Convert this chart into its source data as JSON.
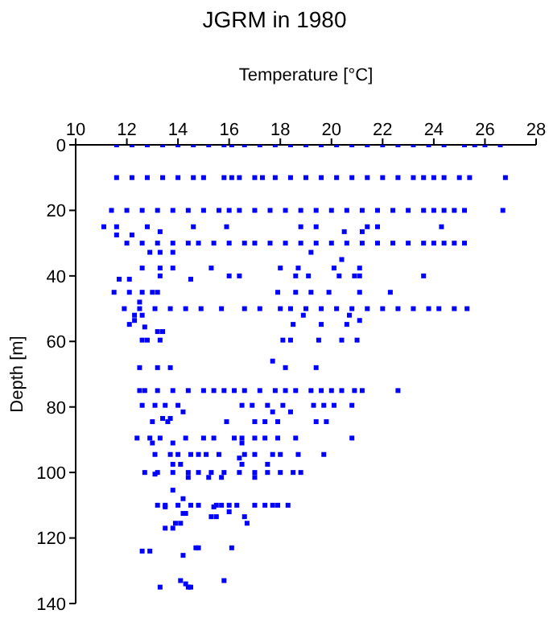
{
  "chart_data": {
    "type": "scatter",
    "title": "JGRM in 1980",
    "xlabel": "Temperature [°C]",
    "ylabel": "Depth [m]",
    "xlim": [
      10,
      28
    ],
    "xticks": [
      10,
      12,
      14,
      16,
      18,
      20,
      22,
      24,
      26,
      28
    ],
    "ylim": [
      140,
      0
    ],
    "yticks": [
      0,
      20,
      40,
      60,
      80,
      100,
      120,
      140
    ],
    "grid": false,
    "legend": false,
    "marker": "square",
    "series": [
      {
        "color": "#0000ff",
        "x": [
          11.6,
          12.2,
          12.8,
          13.4,
          14.0,
          14.6,
          15.2,
          15.8,
          16.1,
          16.6,
          17.2,
          17.8,
          18.4,
          19.0,
          19.6,
          20.2,
          20.8,
          21.4,
          22.0,
          22.6,
          23.2,
          23.8,
          24.4,
          25.2,
          25.6,
          26.0,
          26.6,
          11.6,
          12.2,
          12.8,
          13.4,
          14.0,
          14.6,
          15.0,
          15.8,
          16.1,
          16.4,
          17.0,
          17.3,
          17.8,
          18.4,
          19.0,
          19.6,
          20.2,
          20.8,
          21.4,
          22.0,
          22.6,
          23.2,
          23.6,
          24.0,
          24.4,
          25.0,
          25.4,
          26.8,
          11.4,
          12.0,
          12.6,
          13.2,
          13.8,
          14.4,
          15.0,
          15.6,
          16.0,
          16.4,
          17.0,
          17.6,
          18.2,
          18.8,
          19.4,
          20.0,
          20.6,
          21.2,
          21.8,
          22.4,
          23.0,
          23.6,
          24.0,
          24.4,
          24.8,
          25.2,
          26.7,
          11.1,
          11.6,
          12.8,
          14.6,
          15.9,
          18.8,
          19.4,
          21.4,
          21.8,
          24.3,
          11.6,
          12.2,
          13.3,
          20.5,
          21.2,
          12.0,
          12.6,
          13.2,
          13.8,
          14.4,
          14.8,
          15.4,
          16.0,
          16.6,
          17.0,
          17.6,
          18.2,
          18.8,
          19.4,
          20.0,
          20.6,
          21.2,
          21.8,
          22.4,
          23.0,
          23.6,
          24.0,
          24.4,
          24.8,
          25.2,
          12.9,
          13.3,
          13.8,
          19.2,
          20.4,
          12.6,
          13.3,
          13.8,
          15.3,
          18.0,
          18.7,
          20.1,
          21.1,
          13.3,
          16.0,
          16.4,
          18.6,
          19.1,
          20.3,
          20.9,
          21.1,
          23.6,
          11.7,
          12.1,
          14.5,
          11.5,
          12.1,
          12.6,
          13.0,
          13.2,
          17.9,
          18.6,
          19.2,
          19.9,
          21.1,
          22.3,
          12.5,
          11.9,
          12.5,
          13.1,
          13.7,
          14.3,
          14.9,
          15.7,
          16.6,
          17.2,
          18.0,
          18.4,
          19.0,
          19.6,
          20.2,
          20.8,
          21.4,
          22.0,
          22.6,
          23.2,
          23.8,
          24.2,
          24.8,
          25.3,
          12.3,
          12.6,
          18.9,
          20.7,
          12.3,
          21.1,
          12.1,
          18.5,
          19.6,
          20.6,
          12.7,
          13.2,
          13.4,
          12.6,
          12.8,
          13.3,
          18.1,
          18.4,
          19.5,
          20.4,
          21.0,
          17.7,
          12.5,
          13.2,
          13.7,
          18.2,
          19.4,
          12.5,
          12.7,
          13.2,
          13.8,
          14.4,
          15.0,
          15.4,
          15.8,
          16.2,
          16.6,
          17.2,
          17.8,
          18.2,
          18.6,
          19.2,
          19.6,
          20.0,
          20.4,
          20.9,
          21.2,
          22.6,
          12.6,
          13.1,
          13.5,
          14.0,
          16.5,
          16.9,
          17.5,
          18.1,
          19.3,
          19.7,
          20.1,
          20.8,
          14.2,
          17.7,
          18.4,
          13.4,
          13.7,
          13.0,
          13.6,
          15.9,
          17.0,
          17.4,
          17.9,
          19.4,
          19.8,
          12.4,
          12.9,
          13.3,
          14.3,
          15.0,
          15.4,
          16.2,
          16.5,
          17.0,
          17.4,
          17.9,
          18.6,
          20.8,
          13.0,
          13.8,
          16.5,
          13.1,
          13.7,
          14.0,
          14.5,
          14.8,
          15.1,
          15.6,
          16.6,
          17.0,
          17.7,
          18.0,
          18.7,
          19.7,
          16.4,
          13.8,
          14.1,
          16.5,
          17.5,
          12.7,
          13.2,
          13.8,
          14.4,
          14.8,
          15.3,
          15.8,
          16.4,
          17.0,
          17.5,
          18.0,
          18.5,
          18.8,
          13.1,
          14.4,
          15.2,
          15.7,
          17.0,
          13.8,
          14.2,
          13.2,
          13.5,
          14.0,
          14.5,
          14.8,
          15.5,
          15.7,
          16.0,
          16.3,
          17.0,
          17.4,
          17.7,
          17.9,
          18.3,
          13.5,
          15.4,
          16.0,
          14.2,
          14.3,
          15.3,
          15.5,
          16.6,
          13.9,
          14.1,
          16.7,
          13.5,
          13.8,
          14.7,
          14.8,
          16.1,
          12.6,
          12.9,
          14.2,
          14.1,
          15.8,
          14.3,
          13.3,
          14.4,
          14.5
        ],
        "values": [
          0,
          0,
          0,
          0,
          0,
          0,
          0,
          0,
          0,
          0,
          0,
          0,
          0,
          0,
          0,
          0,
          0,
          0,
          0,
          0,
          0,
          0,
          0,
          0,
          0,
          0,
          0,
          10,
          10,
          10,
          10,
          10,
          10,
          10,
          10,
          10,
          10,
          10,
          10,
          10,
          10,
          10,
          10,
          10,
          10,
          10,
          10,
          10,
          10,
          10,
          10,
          10,
          10,
          10,
          10,
          20,
          20,
          20,
          20,
          20,
          20,
          20,
          20,
          20,
          20,
          20,
          20,
          20,
          20,
          20,
          20,
          20,
          20,
          20,
          20,
          20,
          20,
          20,
          20,
          20,
          20,
          20,
          25,
          25,
          25,
          25,
          25,
          25,
          25,
          25,
          25,
          25,
          27.5,
          27.5,
          26.5,
          26.5,
          26.5,
          30,
          30,
          30,
          30,
          30,
          30,
          30,
          30,
          30,
          30,
          30,
          30,
          30,
          30,
          30,
          30,
          30,
          30,
          30,
          30,
          30,
          30,
          30,
          30,
          30,
          32.8,
          32.8,
          32.8,
          32.8,
          35,
          37.6,
          37.6,
          37.6,
          37.6,
          37.6,
          37.6,
          37.6,
          37.6,
          40,
          40,
          40,
          40,
          40,
          40,
          40,
          40,
          40,
          41,
          41,
          41,
          45,
          45,
          45,
          45,
          45,
          45,
          45,
          45,
          45,
          45,
          45,
          48,
          50,
          50,
          50,
          50,
          50,
          50,
          50,
          50,
          50,
          50,
          50,
          50,
          50,
          50,
          50,
          50,
          50,
          50,
          50,
          50,
          50,
          50,
          50,
          52,
          52,
          52,
          52,
          53.6,
          53.6,
          54.8,
          54.8,
          54.8,
          54.8,
          55.6,
          57,
          57,
          59.6,
          59.6,
          59.6,
          59.6,
          59.6,
          59.6,
          59.6,
          59.6,
          66,
          68,
          68,
          68,
          68,
          68,
          75,
          75,
          75,
          75,
          75,
          75,
          75,
          75,
          75,
          75,
          75,
          75,
          75,
          75,
          75,
          75,
          75,
          75,
          75,
          75,
          75,
          79.5,
          79.5,
          79.5,
          79.5,
          79.5,
          79.5,
          79.5,
          79.5,
          79.5,
          79.5,
          79.5,
          79.5,
          81.5,
          81.5,
          81.5,
          83.5,
          83.5,
          84.5,
          84.5,
          84.5,
          84.5,
          84.5,
          84.5,
          84.5,
          84.5,
          89.5,
          89.5,
          89.5,
          89.5,
          89.5,
          89.5,
          89.5,
          89.5,
          89.5,
          89.5,
          89.5,
          89.5,
          89.5,
          91,
          91,
          91,
          94.5,
          94.5,
          94.5,
          94.5,
          94.5,
          94.5,
          94.5,
          94.5,
          94.5,
          94.5,
          94.5,
          94.5,
          94.5,
          95.6,
          97.5,
          97.5,
          97.5,
          97.5,
          100,
          100,
          100,
          100,
          100,
          100,
          100,
          100,
          100,
          100,
          100,
          100,
          100,
          100.5,
          101.5,
          101.5,
          101.5,
          101.5,
          105.4,
          108,
          110,
          110,
          110,
          110,
          110,
          110,
          110,
          110,
          110,
          110,
          110,
          110,
          110,
          110,
          110.5,
          110.5,
          112,
          112.5,
          112.5,
          113.5,
          113.5,
          113.5,
          115.5,
          115.5,
          115.5,
          117,
          117,
          123,
          123,
          123,
          124,
          124,
          125.3,
          133,
          133,
          134,
          135,
          135,
          135
        ]
      }
    ]
  }
}
